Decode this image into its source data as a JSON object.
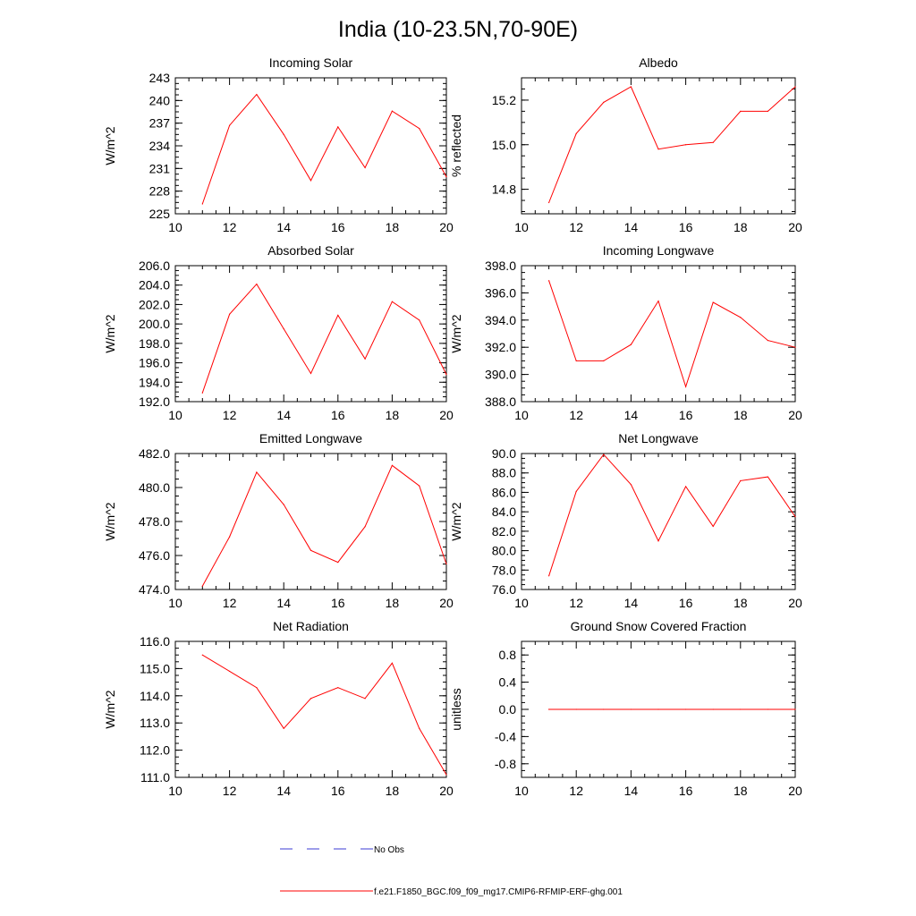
{
  "figure": {
    "title": "India (10-23.5N,70-90E)",
    "legend": {
      "placement": "bottom",
      "entries": [
        {
          "label": "No Obs",
          "color": "#3b3bd6",
          "dash": true
        },
        {
          "label": "f.e21.F1850_BGC.f09_f09_mg17.CMIP6-RFMIP-ERF-ghg.001",
          "color": "#ff0000",
          "dash": false
        }
      ]
    },
    "series_color": "#ff0000"
  },
  "chart_data": [
    {
      "type": "line",
      "title": "Incoming Solar",
      "ylabel": "W/m^2",
      "xlim": [
        10,
        20
      ],
      "ylim": [
        225,
        243
      ],
      "xticks": [
        "10",
        "12",
        "14",
        "16",
        "18",
        "20"
      ],
      "yticks": [
        "225",
        "228",
        "231",
        "234",
        "237",
        "240",
        "243"
      ],
      "x": [
        11,
        12,
        13,
        14,
        15,
        16,
        17,
        18,
        19,
        20
      ],
      "values": [
        226.3,
        236.7,
        240.8,
        235.5,
        229.4,
        236.5,
        231.1,
        238.6,
        236.3,
        229.9
      ]
    },
    {
      "type": "line",
      "title": "Albedo",
      "ylabel": "% reflected",
      "xlim": [
        10,
        20
      ],
      "ylim": [
        14.69,
        15.3
      ],
      "xticks": [
        "10",
        "12",
        "14",
        "16",
        "18",
        "20"
      ],
      "yticks": [
        "14.8",
        "15.0",
        "15.2"
      ],
      "x": [
        11,
        12,
        13,
        14,
        15,
        16,
        17,
        18,
        19,
        20
      ],
      "values": [
        14.74,
        15.05,
        15.19,
        15.26,
        14.98,
        15.0,
        15.01,
        15.15,
        15.15,
        15.26
      ]
    },
    {
      "type": "line",
      "title": "Absorbed Solar",
      "ylabel": "W/m^2",
      "xlim": [
        10,
        20
      ],
      "ylim": [
        192,
        206
      ],
      "xticks": [
        "10",
        "12",
        "14",
        "16",
        "18",
        "20"
      ],
      "yticks": [
        "192.0",
        "194.0",
        "196.0",
        "198.0",
        "200.0",
        "202.0",
        "204.0",
        "206.0"
      ],
      "x": [
        11,
        12,
        13,
        14,
        15,
        16,
        17,
        18,
        19,
        20
      ],
      "values": [
        192.9,
        201.0,
        204.1,
        199.5,
        194.9,
        200.9,
        196.4,
        202.3,
        200.4,
        194.8
      ]
    },
    {
      "type": "line",
      "title": "Incoming Longwave",
      "ylabel": "W/m^2",
      "xlim": [
        10,
        20
      ],
      "ylim": [
        388,
        398
      ],
      "xticks": [
        "10",
        "12",
        "14",
        "16",
        "18",
        "20"
      ],
      "yticks": [
        "388.0",
        "390.0",
        "392.0",
        "394.0",
        "396.0",
        "398.0"
      ],
      "x": [
        11,
        12,
        13,
        14,
        15,
        16,
        17,
        18,
        19,
        20
      ],
      "values": [
        396.9,
        391.0,
        391.0,
        392.2,
        395.4,
        389.1,
        395.3,
        394.2,
        392.5,
        392.0
      ]
    },
    {
      "type": "line",
      "title": "Emitted Longwave",
      "ylabel": "W/m^2",
      "xlim": [
        10,
        20
      ],
      "ylim": [
        474,
        482
      ],
      "xticks": [
        "10",
        "12",
        "14",
        "16",
        "18",
        "20"
      ],
      "yticks": [
        "474.0",
        "476.0",
        "478.0",
        "480.0",
        "482.0"
      ],
      "x": [
        11,
        12,
        13,
        14,
        15,
        16,
        17,
        18,
        19,
        20
      ],
      "values": [
        474.2,
        477.1,
        480.9,
        479.0,
        476.3,
        475.6,
        477.7,
        481.3,
        480.1,
        475.5
      ]
    },
    {
      "type": "line",
      "title": "Net Longwave",
      "ylabel": "W/m^2",
      "xlim": [
        10,
        20
      ],
      "ylim": [
        76,
        90
      ],
      "xticks": [
        "10",
        "12",
        "14",
        "16",
        "18",
        "20"
      ],
      "yticks": [
        "76.0",
        "78.0",
        "80.0",
        "82.0",
        "84.0",
        "86.0",
        "88.0",
        "90.0"
      ],
      "x": [
        11,
        12,
        13,
        14,
        15,
        16,
        17,
        18,
        19,
        20
      ],
      "values": [
        77.4,
        86.1,
        89.9,
        86.8,
        81.0,
        86.6,
        82.5,
        87.2,
        87.6,
        83.5
      ]
    },
    {
      "type": "line",
      "title": "Net Radiation",
      "ylabel": "W/m^2",
      "xlim": [
        10,
        20
      ],
      "ylim": [
        111,
        116
      ],
      "xticks": [
        "10",
        "12",
        "14",
        "16",
        "18",
        "20"
      ],
      "yticks": [
        "111.0",
        "112.0",
        "113.0",
        "114.0",
        "115.0",
        "116.0"
      ],
      "x": [
        11,
        12,
        13,
        14,
        15,
        16,
        17,
        18,
        19,
        20
      ],
      "values": [
        115.5,
        114.9,
        114.3,
        112.8,
        113.9,
        114.3,
        113.9,
        115.2,
        112.8,
        111.1
      ]
    },
    {
      "type": "line",
      "title": "Ground Snow Covered Fraction",
      "ylabel": "unitless",
      "xlim": [
        10,
        20
      ],
      "ylim": [
        -1.0,
        1.0
      ],
      "xticks": [
        "10",
        "12",
        "14",
        "16",
        "18",
        "20"
      ],
      "yticks": [
        "-0.8",
        "-0.4",
        "0.0",
        "0.4",
        "0.8"
      ],
      "ytick_values": [
        -0.8,
        -0.4,
        0.0,
        0.4,
        0.8
      ],
      "x": [
        11,
        12,
        13,
        14,
        15,
        16,
        17,
        18,
        19,
        20
      ],
      "values": [
        0,
        0,
        0,
        0,
        0,
        0,
        0,
        0,
        0,
        0
      ]
    }
  ]
}
